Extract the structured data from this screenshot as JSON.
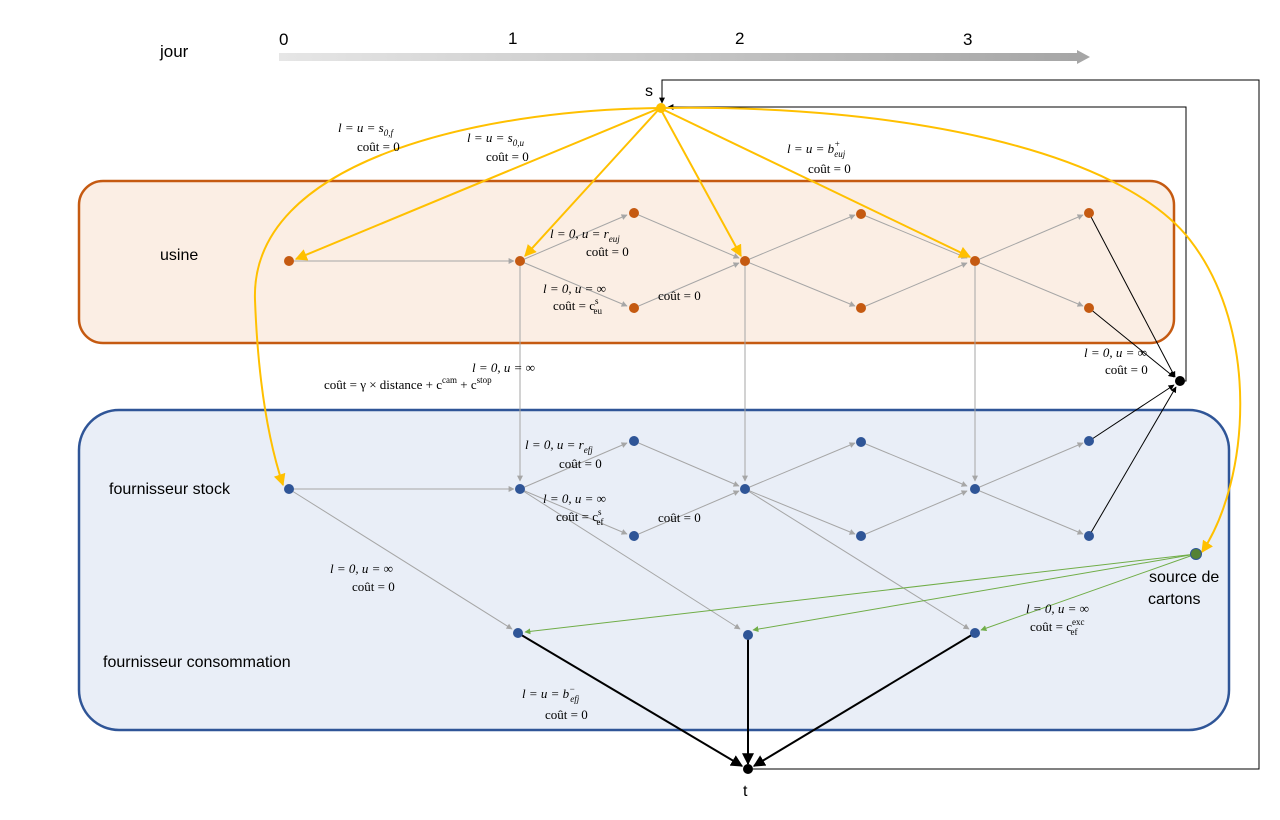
{
  "timeline": {
    "label": "jour",
    "days": [
      "0",
      "1",
      "2",
      "3"
    ]
  },
  "rows": {
    "usine": "usine",
    "stock": "fournisseur stock",
    "consommation": "fournisseur consommation"
  },
  "nodes": {
    "s": "s",
    "t": "t",
    "source_line1": "source de",
    "source_line2": "cartons"
  },
  "edge_labels": {
    "s0f": {
      "l1": "l = u = s",
      "l1_sub": "0,f",
      "l2": "coût = 0"
    },
    "s0u": {
      "l1": "l = u = s",
      "l1_sub": "0,u",
      "l2": "coût = 0"
    },
    "beuj": {
      "l1": "l = u = b",
      "l1_sup": "+",
      "l1_sub": "euj",
      "l2": "coût = 0"
    },
    "reuj": {
      "l1": "l = 0, u = r",
      "l1_sub": "euj",
      "l2": "coût = 0"
    },
    "ceu": {
      "l1": "l = 0, u = ∞",
      "l2": "coût = c",
      "l2_sup": "s",
      "l2_sub": "eu"
    },
    "usine_wait": {
      "l1": "coût = 0"
    },
    "transport": {
      "l1": "l = 0, u = ∞",
      "l2": "coût = γ × distance + c",
      "l2_sup1": "cam",
      "l2_mid": " + c",
      "l2_sup2": "stop"
    },
    "sink_usine": {
      "l1": "l = 0, u = ∞",
      "l2": "coût = 0"
    },
    "refj": {
      "l1": "l = 0, u = r",
      "l1_sub": "efj",
      "l2": "coût = 0"
    },
    "cef": {
      "l1": "l = 0, u = ∞",
      "l2": "coût = c",
      "l2_sup": "s",
      "l2_sub": "ef"
    },
    "stock_wait": {
      "l1": "coût = 0"
    },
    "conso": {
      "l1": "l = 0, u = ∞",
      "l2": "coût = 0"
    },
    "cexc": {
      "l1": "l = 0, u = ∞",
      "l2": "coût = c",
      "l2_sup": "exc",
      "l2_sub": "ef"
    },
    "befj": {
      "l1": "l = u = b",
      "l1_sup": "−",
      "l1_sub": "efj",
      "l2": "coût = 0"
    }
  },
  "colors": {
    "usine_fill": "#fbeee4",
    "usine_stroke": "#c55a11",
    "fourn_fill": "#e9eef7",
    "fourn_stroke": "#2f5597",
    "orange_node": "#c55a11",
    "blue_node": "#2f5597",
    "green_node": "#548235",
    "yellow_edge": "#ffc000",
    "grey_edge": "#a6a6a6",
    "green_edge": "#70ad47",
    "black": "#000000"
  }
}
